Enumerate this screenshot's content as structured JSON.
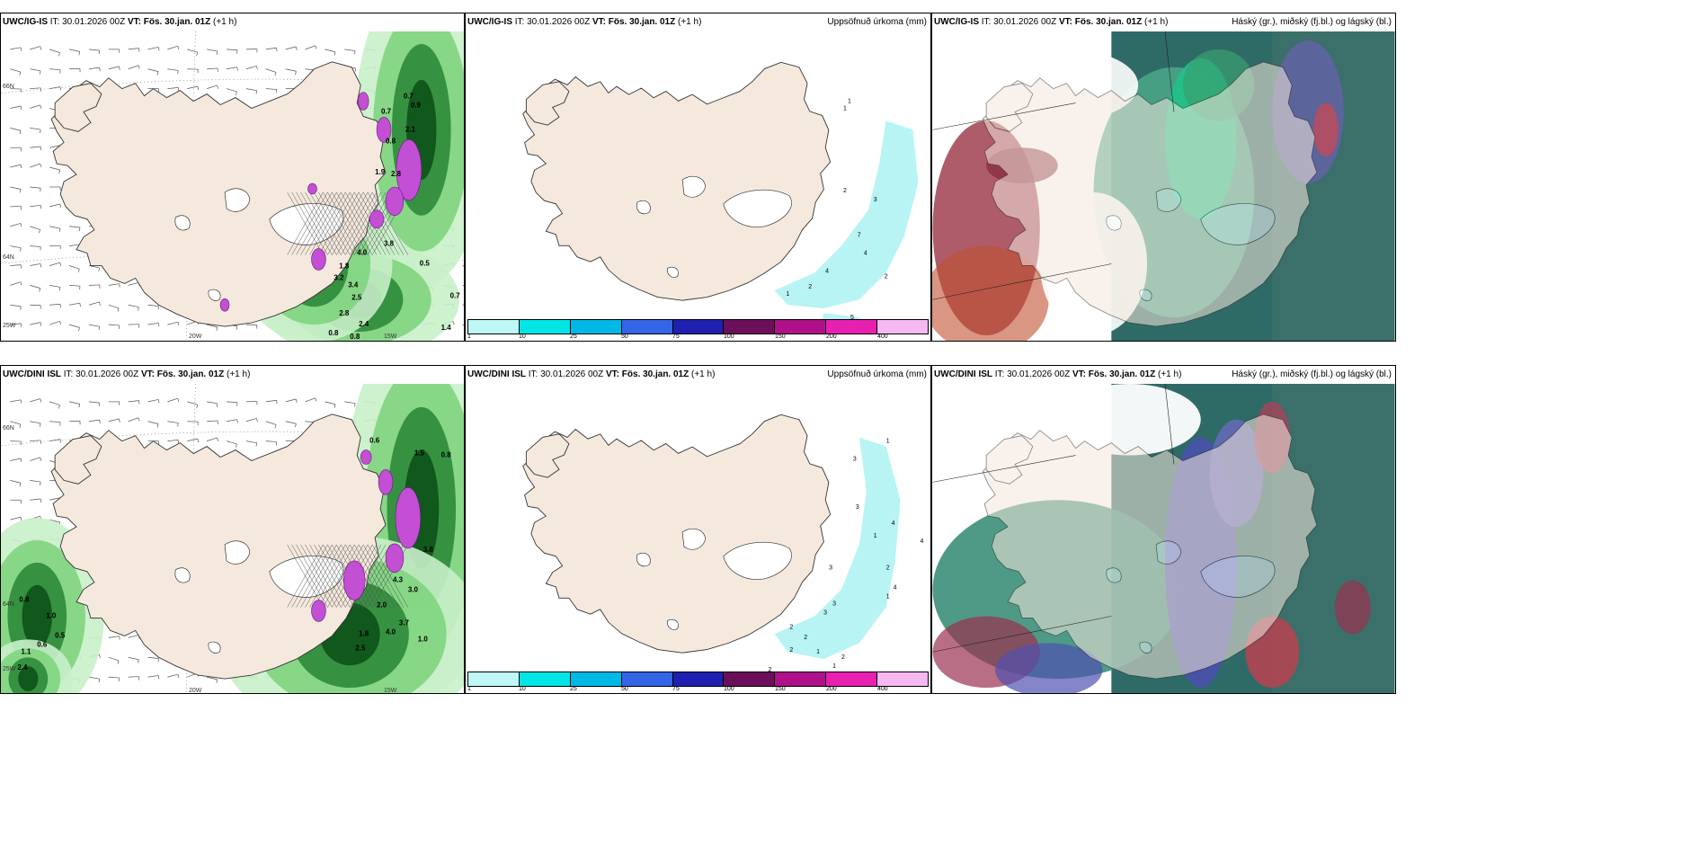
{
  "panels": [
    {
      "model": "UWC/IG-IS",
      "it": "IT: 30.01.2026 00Z",
      "vt_label": "VT:",
      "vt": "Fös. 30.jan. 01Z",
      "lead": "(+1 h)",
      "right": ""
    },
    {
      "model": "UWC/IG-IS",
      "it": "IT: 30.01.2026 00Z",
      "vt_label": "VT:",
      "vt": "Fös. 30.jan. 01Z",
      "lead": "(+1 h)",
      "right": "Uppsöfnuð úrkoma (mm)"
    },
    {
      "model": "UWC/IG-IS",
      "it": "IT: 30.01.2026 00Z",
      "vt_label": "VT:",
      "vt": "Fös. 30.jan. 01Z",
      "lead": "(+1 h)",
      "right": "Háský (gr.), miðský (fj.bl.) og lágský (bl.)"
    },
    {
      "model": "UWC/DINI ISL",
      "it": "IT: 30.01.2026 00Z",
      "vt_label": "VT:",
      "vt": "Fös. 30.jan. 01Z",
      "lead": "(+1 h)",
      "right": ""
    },
    {
      "model": "UWC/DINI ISL",
      "it": "IT: 30.01.2026 00Z",
      "vt_label": "VT:",
      "vt": "Fös. 30.jan. 01Z",
      "lead": "(+1 h)",
      "right": "Uppsöfnuð úrkoma (mm)"
    },
    {
      "model": "UWC/DINI ISL",
      "it": "IT: 30.01.2026 00Z",
      "vt_label": "VT:",
      "vt": "Fös. 30.jan. 01Z",
      "lead": "(+1 h)",
      "right": "Háský (gr.), miðský (fj.bl.) og lágský (bl.)"
    }
  ],
  "coords": {
    "lat66": "66N",
    "lat64": "64N",
    "lon25": "25W",
    "lon20": "20W",
    "lon15": "15W"
  },
  "legend": {
    "colors": [
      "#bff7f7",
      "#00e6e6",
      "#00b8e6",
      "#3366e6",
      "#2020b0",
      "#6b0f5a",
      "#b0108a",
      "#e820b0",
      "#f5b8f0"
    ],
    "ticks": [
      "1",
      "10",
      "25",
      "50",
      "75",
      "100",
      "150",
      "200",
      "400"
    ]
  },
  "colors": {
    "land": "#f5e9de",
    "land_stroke": "#333333",
    "green1": "#c9f0c9",
    "green2": "#7fd47f",
    "green3": "#2e8b3a",
    "green4": "#0d5218",
    "magenta": "#c24fd4",
    "cyan": "#b8f4f4"
  },
  "top_wind_labels": [
    "0.7",
    "0.9",
    "0.7",
    "0.8",
    "2.1",
    "1.9",
    "2.8",
    "4.0",
    "3.8",
    "1.8",
    "3.2",
    "3.4",
    "2.5",
    "2.8",
    "2.4",
    "0.8",
    "0.8",
    "0.5",
    "0.7",
    "1.4"
  ],
  "bottom_wind_labels": [
    "0.6",
    "1.5",
    "0.8",
    "4.3",
    "3.8",
    "3.0",
    "3.7",
    "1.0",
    "2.0",
    "4.0",
    "1.8",
    "2.5",
    "0.8",
    "1.0",
    "0.5",
    "0.6",
    "2.4",
    "1.1",
    "0.5",
    "1.0"
  ],
  "top_precip_labels": [
    "1",
    "1",
    "2",
    "3",
    "7",
    "4",
    "4",
    "2",
    "2",
    "1",
    "5"
  ],
  "bottom_precip_labels": [
    "1",
    "3",
    "3",
    "4",
    "4",
    "1",
    "3",
    "3",
    "2",
    "4",
    "3",
    "1",
    "2",
    "2",
    "2",
    "1",
    "2",
    "1",
    "2"
  ]
}
